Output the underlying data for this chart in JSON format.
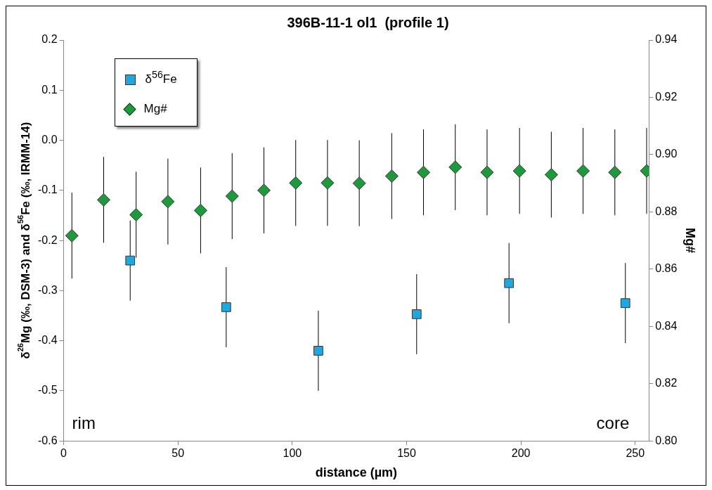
{
  "chart_data": {
    "type": "scatter",
    "title": "396B-11-1 ol1  (profile 1)",
    "xlabel": "distance (µm)",
    "ylabel": "δ$^{26}$Mg (‰, DSM-3) and δ$^{56}$Fe (‰, IRMM-14)",
    "y2label": "Mg#",
    "xlim": [
      0,
      256
    ],
    "xticks": [
      0,
      50,
      100,
      150,
      200,
      250
    ],
    "ylim": [
      -0.6,
      0.2
    ],
    "yticks": [
      -0.6,
      -0.5,
      -0.4,
      -0.3,
      -0.2,
      -0.1,
      {
        "value": 0,
        "label": "0.0"
      },
      0.1,
      0.2
    ],
    "y2lim": [
      0.8,
      0.94
    ],
    "y2ticks": [
      {
        "value": 0.8,
        "label": "0.80"
      },
      0.82,
      0.84,
      0.86,
      0.88,
      {
        "value": 0.9,
        "label": "0.90"
      },
      0.92,
      0.94
    ],
    "legend": "top left",
    "grid": false,
    "annotations": [
      "rim",
      "core"
    ],
    "series": [
      {
        "name": "δ$^{56}$Fe",
        "color": "#1ea8e0",
        "marker": "square",
        "x": [
          29.1,
          71.1,
          111.4,
          154.4,
          194.8,
          245.7
        ],
        "values": [
          -0.24,
          -0.333,
          -0.42,
          -0.347,
          -0.285,
          -0.325
        ],
        "errors": [
          0.08,
          0.08,
          0.08,
          0.08,
          0.08,
          0.08
        ]
      },
      {
        "name": "Mg#",
        "color": "#1e9a3c",
        "marker": "diamond",
        "axis": "y2",
        "x": [
          3.6,
          17.5,
          31.7,
          45.6,
          59.9,
          73.7,
          87.6,
          101.5,
          115.4,
          129.3,
          143.5,
          157.4,
          171.3,
          185.2,
          199.4,
          213.3,
          227.2,
          241.1,
          255
        ],
        "values": [
          0.8717,
          0.8842,
          0.879,
          0.8836,
          0.8805,
          0.8855,
          0.8875,
          0.8901,
          0.8901,
          0.89,
          0.8925,
          0.8938,
          0.8956,
          0.8938,
          0.8943,
          0.893,
          0.8943,
          0.8938,
          0.8943
        ],
        "errors": [
          0.015,
          0.015,
          0.015,
          0.015,
          0.015,
          0.015,
          0.015,
          0.015,
          0.015,
          0.015,
          0.015,
          0.015,
          0.015,
          0.015,
          0.015,
          0.015,
          0.015,
          0.015,
          0.015
        ]
      }
    ]
  }
}
